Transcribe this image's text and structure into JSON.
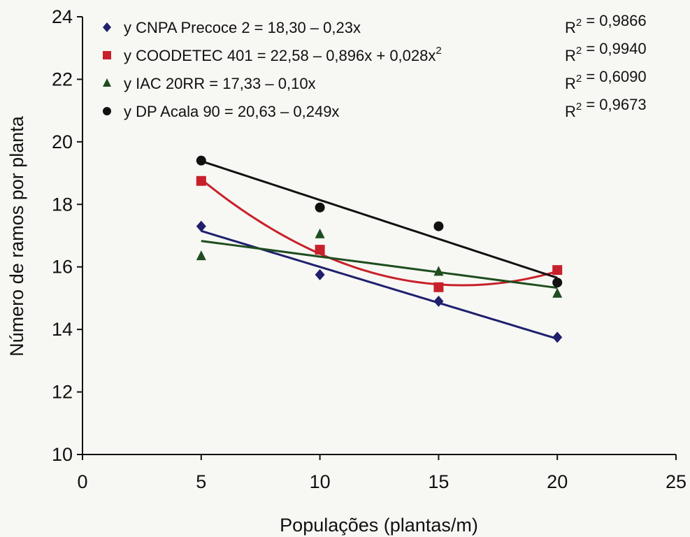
{
  "chart_data": {
    "type": "scatter",
    "title": "",
    "xlabel": "Populações (plantas/m)",
    "ylabel": "Número de ramos por planta",
    "xlim": [
      0,
      25
    ],
    "ylim": [
      10,
      24
    ],
    "xticks": [
      0,
      5,
      10,
      15,
      20,
      25
    ],
    "yticks": [
      10,
      12,
      14,
      16,
      18,
      20,
      22,
      24
    ],
    "grid": false,
    "legend_position": "top",
    "x": [
      5,
      10,
      15,
      20
    ],
    "series": [
      {
        "name": "y CNPA  Precoce 2 = 18,30 – 0,23x",
        "r2": "R² = 0,9866",
        "marker": "diamond",
        "color": "#1f1f6e",
        "values": [
          17.3,
          15.75,
          14.9,
          13.75
        ],
        "fit": {
          "type": "linear",
          "coefficients": [
            18.3,
            -0.23
          ]
        }
      },
      {
        "name": "y COODETEC 401 = 22,58 – 0,896x + 0,028x²",
        "r2": "R² = 0,9940",
        "marker": "square",
        "color": "#c8202a",
        "values": [
          18.75,
          16.55,
          15.35,
          15.9
        ],
        "fit": {
          "type": "quadratic",
          "coefficients": [
            22.58,
            -0.896,
            0.028
          ]
        }
      },
      {
        "name": "y IAC 20RR  = 17,33 – 0,10x",
        "r2": "R² = 0,6090",
        "marker": "triangle",
        "color": "#1e4d1e",
        "values": [
          16.35,
          17.05,
          15.85,
          15.15
        ],
        "fit": {
          "type": "linear",
          "coefficients": [
            17.33,
            -0.1
          ]
        }
      },
      {
        "name": "y DP Acala 90 = 20,63 – 0,249x",
        "r2": "R² = 0,9673",
        "marker": "circle",
        "color": "#111111",
        "values": [
          19.4,
          17.9,
          17.3,
          15.5
        ],
        "fit": {
          "type": "linear",
          "coefficients": [
            20.63,
            -0.249
          ]
        }
      }
    ]
  }
}
